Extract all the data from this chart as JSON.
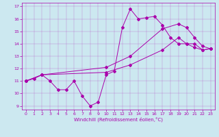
{
  "bg_color": "#cce8f0",
  "line_color": "#aa00aa",
  "xlim": [
    -0.5,
    23.5
  ],
  "ylim": [
    8.7,
    17.3
  ],
  "xticks": [
    0,
    1,
    2,
    3,
    4,
    5,
    6,
    7,
    8,
    9,
    10,
    11,
    12,
    13,
    14,
    15,
    16,
    17,
    18,
    19,
    20,
    21,
    22,
    23
  ],
  "yticks": [
    9,
    10,
    11,
    12,
    13,
    14,
    15,
    16,
    17
  ],
  "xlabel": "Windchill (Refroidissement éolien,°C)",
  "series1_x": [
    0,
    1,
    2,
    3,
    4,
    5,
    6,
    7,
    8,
    9,
    10,
    11,
    12,
    13,
    14,
    15,
    16,
    17,
    18,
    19,
    20,
    21,
    22,
    23
  ],
  "series1_y": [
    11.0,
    11.2,
    11.5,
    11.0,
    10.3,
    10.3,
    11.0,
    9.8,
    9.0,
    9.3,
    11.5,
    11.8,
    15.3,
    16.8,
    16.0,
    16.1,
    16.2,
    15.5,
    14.5,
    14.0,
    14.0,
    13.7,
    13.5,
    13.6
  ],
  "series2_x": [
    0,
    2,
    10,
    13,
    17,
    19,
    20,
    21,
    22,
    23
  ],
  "series2_y": [
    11.0,
    11.5,
    12.1,
    13.0,
    15.2,
    15.6,
    15.3,
    14.5,
    13.8,
    13.6
  ],
  "series3_x": [
    0,
    2,
    10,
    13,
    17,
    19,
    20,
    21,
    22,
    23
  ],
  "series3_y": [
    11.0,
    11.5,
    11.7,
    12.3,
    13.5,
    14.5,
    14.0,
    14.0,
    13.5,
    13.6
  ]
}
